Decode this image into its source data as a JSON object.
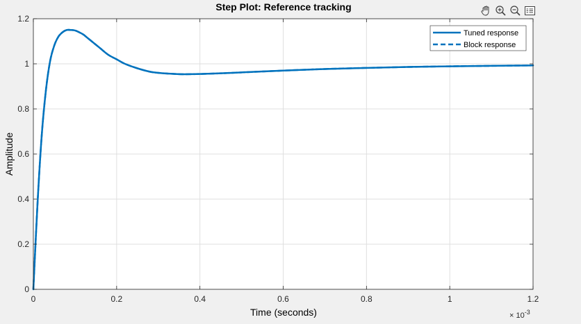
{
  "toolbar": {
    "icons": [
      "pan-icon",
      "zoom-in-icon",
      "zoom-out-icon",
      "legend-toggle-icon"
    ]
  },
  "chart_data": {
    "type": "line",
    "title": "Step Plot: Reference tracking",
    "xlabel": "Time (seconds)",
    "ylabel": "Amplitude",
    "x_exponent": "× 10",
    "x_exponent_power": "-3",
    "xlim": [
      0,
      1.2
    ],
    "ylim": [
      0,
      1.2
    ],
    "xticks": [
      0,
      0.2,
      0.4,
      0.6,
      0.8,
      1,
      1.2
    ],
    "xtick_labels": [
      "0",
      "0.2",
      "0.4",
      "0.6",
      "0.8",
      "1",
      "1.2"
    ],
    "yticks": [
      0,
      0.2,
      0.4,
      0.6,
      0.8,
      1,
      1.2
    ],
    "ytick_labels": [
      "0",
      "0.2",
      "0.4",
      "0.6",
      "0.8",
      "1",
      "1.2"
    ],
    "grid": true,
    "legend_position": "top-right",
    "series": [
      {
        "name": "Tuned response",
        "color": "#0072BD",
        "style": "solid",
        "x": [
          0,
          0.01,
          0.02,
          0.03,
          0.04,
          0.05,
          0.06,
          0.07,
          0.08,
          0.09,
          0.1,
          0.11,
          0.12,
          0.13,
          0.14,
          0.15,
          0.16,
          0.18,
          0.2,
          0.22,
          0.25,
          0.28,
          0.3,
          0.33,
          0.36,
          0.4,
          0.45,
          0.5,
          0.55,
          0.6,
          0.7,
          0.8,
          0.9,
          1.0,
          1.1,
          1.2
        ],
        "y": [
          0,
          0.38,
          0.68,
          0.88,
          1.01,
          1.08,
          1.12,
          1.14,
          1.15,
          1.15,
          1.148,
          1.14,
          1.13,
          1.115,
          1.1,
          1.085,
          1.07,
          1.04,
          1.02,
          1.0,
          0.98,
          0.965,
          0.96,
          0.956,
          0.954,
          0.955,
          0.958,
          0.962,
          0.966,
          0.97,
          0.977,
          0.982,
          0.986,
          0.989,
          0.991,
          0.993
        ]
      },
      {
        "name": "Block response",
        "color": "#0072BD",
        "style": "dashed",
        "x": [
          0,
          0.01,
          0.02,
          0.03,
          0.04,
          0.05,
          0.06,
          0.07,
          0.08,
          0.09,
          0.1,
          0.11,
          0.12,
          0.13,
          0.14,
          0.15,
          0.16,
          0.18,
          0.2,
          0.22,
          0.25,
          0.28,
          0.3,
          0.33,
          0.36,
          0.4,
          0.45,
          0.5,
          0.55,
          0.6,
          0.7,
          0.8,
          0.9,
          1.0,
          1.1,
          1.2
        ],
        "y": [
          0,
          0.38,
          0.68,
          0.88,
          1.01,
          1.08,
          1.12,
          1.14,
          1.15,
          1.15,
          1.148,
          1.14,
          1.13,
          1.115,
          1.1,
          1.085,
          1.07,
          1.04,
          1.02,
          1.0,
          0.98,
          0.965,
          0.96,
          0.956,
          0.954,
          0.955,
          0.958,
          0.962,
          0.966,
          0.97,
          0.977,
          0.982,
          0.986,
          0.989,
          0.991,
          0.993
        ]
      }
    ]
  }
}
